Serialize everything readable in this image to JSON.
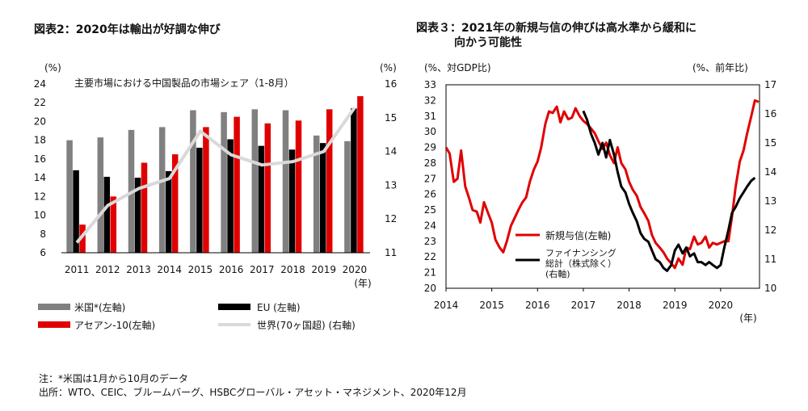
{
  "left_chart": {
    "title": "図表2：2020年は輸出が好調な伸び",
    "unit_left": "(%)",
    "unit_right": "(%)",
    "inner_title": "主要市場における中国製品の市場シェア（1-8月）",
    "year_suffix": "(年)",
    "legend": {
      "us": "米国*(左軸)",
      "eu": "EU (左軸)",
      "asean": "アセアン-10(左軸)",
      "world": "世界(70ヶ国超) (右軸)"
    }
  },
  "right_chart": {
    "title_line1": "図表３：2021年の新規与信の伸びは高水準から緩和に",
    "title_line2": "向かう可能性",
    "unit_left": "(%、対GDP比)",
    "unit_right": "(%、前年比)",
    "year_suffix": "(年)",
    "legend": {
      "credit": "新規与信(左軸)",
      "financing_line1": "ファイナンシング",
      "financing_line2": "総計（株式除く）",
      "financing_line3": "(右軸)"
    }
  },
  "footnote1": "注：*米国は1月から10月のデータ",
  "footnote2": "出所：WTO、CEIC、ブルームバーグ、HSBCグローバル・アセット・マネジメント、2020年12月",
  "colors": {
    "us": "#808080",
    "eu": "#000000",
    "asean": "#e00000",
    "world": "#d9d9d9",
    "credit": "#e00000",
    "financing": "#000000"
  },
  "chart_data": [
    {
      "type": "bar",
      "categories": [
        "2011",
        "2012",
        "2013",
        "2014",
        "2015",
        "2016",
        "2017",
        "2018",
        "2019",
        "2020"
      ],
      "left_axis": {
        "ylim": [
          6,
          24
        ],
        "ticks": [
          6,
          8,
          10,
          12,
          14,
          16,
          18,
          20,
          22,
          24
        ]
      },
      "right_axis": {
        "ylim": [
          11,
          16
        ],
        "ticks": [
          11,
          12,
          13,
          14,
          15,
          16
        ]
      },
      "series": [
        {
          "name": "米国*(左軸)",
          "axis": "left",
          "values": [
            18.0,
            18.3,
            19.1,
            19.4,
            21.2,
            21.0,
            21.3,
            21.2,
            18.5,
            17.9
          ]
        },
        {
          "name": "EU (左軸)",
          "axis": "left",
          "values": [
            14.8,
            14.1,
            14.0,
            14.7,
            17.2,
            18.1,
            17.4,
            17.0,
            17.7,
            21.4
          ]
        },
        {
          "name": "アセアン-10(左軸)",
          "axis": "left",
          "values": [
            9.0,
            12.0,
            15.6,
            16.5,
            19.4,
            20.5,
            19.8,
            20.1,
            21.3,
            22.7
          ]
        },
        {
          "name": "世界(70ヶ国超) (右軸)",
          "axis": "right",
          "type": "line",
          "values": [
            11.3,
            12.4,
            12.9,
            13.2,
            14.6,
            13.9,
            13.6,
            13.7,
            14.0,
            15.3
          ]
        }
      ]
    },
    {
      "type": "line",
      "x_ticks": [
        "2014",
        "2015",
        "2016",
        "2017",
        "2018",
        "2019",
        "2020"
      ],
      "x_range": [
        2014.0,
        2020.85
      ],
      "left_axis": {
        "ylim": [
          20,
          33
        ],
        "ticks": [
          20,
          21,
          22,
          23,
          24,
          25,
          26,
          27,
          28,
          29,
          30,
          31,
          32,
          33
        ]
      },
      "right_axis": {
        "ylim": [
          10,
          17
        ],
        "ticks": [
          10,
          11,
          12,
          13,
          14,
          15,
          16,
          17
        ]
      },
      "series": [
        {
          "name": "新規与信(左軸)",
          "axis": "left",
          "points": [
            [
              2014.0,
              29.0
            ],
            [
              2014.08,
              28.6
            ],
            [
              2014.17,
              26.8
            ],
            [
              2014.25,
              27.0
            ],
            [
              2014.33,
              28.8
            ],
            [
              2014.42,
              26.5
            ],
            [
              2014.5,
              25.8
            ],
            [
              2014.58,
              25.0
            ],
            [
              2014.67,
              24.9
            ],
            [
              2014.75,
              24.2
            ],
            [
              2014.83,
              25.5
            ],
            [
              2014.92,
              24.8
            ],
            [
              2015.0,
              24.2
            ],
            [
              2015.08,
              23.1
            ],
            [
              2015.17,
              22.6
            ],
            [
              2015.25,
              22.3
            ],
            [
              2015.33,
              23.0
            ],
            [
              2015.42,
              24.0
            ],
            [
              2015.5,
              24.5
            ],
            [
              2015.58,
              25.0
            ],
            [
              2015.67,
              25.5
            ],
            [
              2015.75,
              25.8
            ],
            [
              2015.83,
              26.8
            ],
            [
              2015.92,
              27.6
            ],
            [
              2016.0,
              28.1
            ],
            [
              2016.08,
              29.0
            ],
            [
              2016.17,
              30.5
            ],
            [
              2016.25,
              31.3
            ],
            [
              2016.33,
              31.2
            ],
            [
              2016.42,
              31.6
            ],
            [
              2016.5,
              30.6
            ],
            [
              2016.58,
              31.3
            ],
            [
              2016.67,
              30.8
            ],
            [
              2016.75,
              30.9
            ],
            [
              2016.83,
              31.5
            ],
            [
              2016.92,
              31.0
            ],
            [
              2017.0,
              30.7
            ],
            [
              2017.08,
              30.5
            ],
            [
              2017.17,
              30.2
            ],
            [
              2017.25,
              29.9
            ],
            [
              2017.33,
              29.4
            ],
            [
              2017.42,
              28.9
            ],
            [
              2017.5,
              29.3
            ],
            [
              2017.58,
              28.5
            ],
            [
              2017.67,
              28.0
            ],
            [
              2017.75,
              29.0
            ],
            [
              2017.83,
              28.0
            ],
            [
              2017.92,
              27.6
            ],
            [
              2018.0,
              26.8
            ],
            [
              2018.08,
              26.3
            ],
            [
              2018.17,
              25.9
            ],
            [
              2018.25,
              25.2
            ],
            [
              2018.33,
              24.8
            ],
            [
              2018.42,
              24.3
            ],
            [
              2018.5,
              23.4
            ],
            [
              2018.58,
              22.9
            ],
            [
              2018.67,
              22.6
            ],
            [
              2018.75,
              22.3
            ],
            [
              2018.83,
              21.9
            ],
            [
              2018.92,
              21.6
            ],
            [
              2019.0,
              21.3
            ],
            [
              2019.08,
              21.9
            ],
            [
              2019.17,
              21.5
            ],
            [
              2019.25,
              22.6
            ],
            [
              2019.33,
              22.5
            ],
            [
              2019.42,
              23.3
            ],
            [
              2019.5,
              22.8
            ],
            [
              2019.58,
              22.9
            ],
            [
              2019.67,
              23.3
            ],
            [
              2019.75,
              22.6
            ],
            [
              2019.83,
              22.9
            ],
            [
              2019.92,
              22.8
            ],
            [
              2020.0,
              22.9
            ],
            [
              2020.08,
              23.0
            ],
            [
              2020.17,
              23.0
            ],
            [
              2020.25,
              24.6
            ],
            [
              2020.33,
              26.5
            ],
            [
              2020.42,
              28.1
            ],
            [
              2020.5,
              28.8
            ],
            [
              2020.58,
              29.9
            ],
            [
              2020.67,
              31.0
            ],
            [
              2020.75,
              32.0
            ],
            [
              2020.83,
              31.9
            ]
          ]
        },
        {
          "name": "ファイナンシング総計（株式除く）(右軸)",
          "axis": "right",
          "points": [
            [
              2017.0,
              16.1
            ],
            [
              2017.08,
              15.8
            ],
            [
              2017.17,
              15.3
            ],
            [
              2017.25,
              15.0
            ],
            [
              2017.33,
              14.6
            ],
            [
              2017.42,
              15.0
            ],
            [
              2017.5,
              14.5
            ],
            [
              2017.58,
              15.1
            ],
            [
              2017.67,
              14.6
            ],
            [
              2017.75,
              14.0
            ],
            [
              2017.83,
              13.5
            ],
            [
              2017.92,
              13.3
            ],
            [
              2018.0,
              12.9
            ],
            [
              2018.08,
              12.6
            ],
            [
              2018.17,
              12.3
            ],
            [
              2018.25,
              11.9
            ],
            [
              2018.33,
              11.7
            ],
            [
              2018.42,
              11.6
            ],
            [
              2018.5,
              11.3
            ],
            [
              2018.58,
              11.0
            ],
            [
              2018.67,
              10.9
            ],
            [
              2018.75,
              10.7
            ],
            [
              2018.83,
              10.6
            ],
            [
              2018.92,
              10.8
            ],
            [
              2019.0,
              11.3
            ],
            [
              2019.08,
              11.5
            ],
            [
              2019.17,
              11.2
            ],
            [
              2019.25,
              11.4
            ],
            [
              2019.33,
              11.1
            ],
            [
              2019.42,
              11.2
            ],
            [
              2019.5,
              10.9
            ],
            [
              2019.58,
              10.9
            ],
            [
              2019.67,
              10.8
            ],
            [
              2019.75,
              10.9
            ],
            [
              2019.83,
              10.8
            ],
            [
              2019.92,
              10.7
            ],
            [
              2020.0,
              10.8
            ],
            [
              2020.08,
              11.4
            ],
            [
              2020.17,
              12.0
            ],
            [
              2020.25,
              12.6
            ],
            [
              2020.33,
              12.8
            ],
            [
              2020.42,
              13.1
            ],
            [
              2020.5,
              13.3
            ],
            [
              2020.58,
              13.5
            ],
            [
              2020.67,
              13.7
            ],
            [
              2020.75,
              13.8
            ]
          ]
        }
      ]
    }
  ]
}
